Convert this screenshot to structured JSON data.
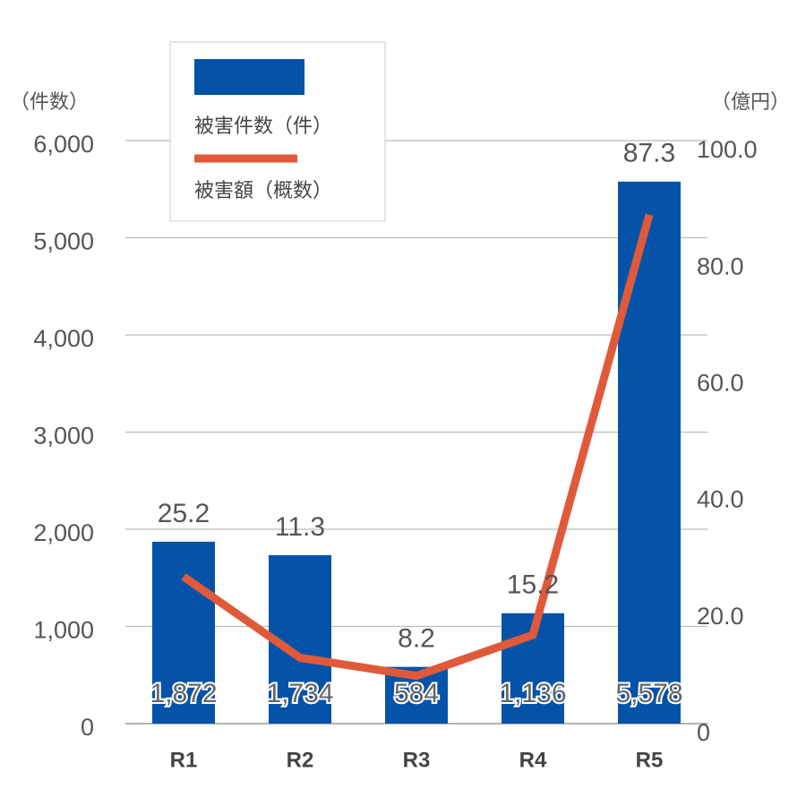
{
  "chart_data": {
    "type": "bar_line",
    "categories": [
      "R1",
      "R2",
      "R3",
      "R4",
      "R5"
    ],
    "series": [
      {
        "name": "被害件数（件）",
        "type": "bar",
        "color": "#0553a8",
        "values": [
          1872,
          1734,
          584,
          1136,
          5578
        ],
        "value_labels": [
          "1,872",
          "1,734",
          "584",
          "1,136",
          "5,578"
        ]
      },
      {
        "name": "被害額（概数）",
        "type": "line",
        "color": "#e05a3a",
        "axis": "y2",
        "values": [
          25.2,
          11.3,
          8.2,
          15.2,
          87.3
        ]
      }
    ],
    "y_label": "（件数）",
    "y2_label": "（億円）",
    "ylim": [
      0,
      6000
    ],
    "yticks": [
      0,
      {
        "value": 1000,
        "label": "1,000"
      },
      {
        "value": 2000,
        "label": "2,000"
      },
      {
        "value": 3000,
        "label": "3,000"
      },
      {
        "value": 4000,
        "label": "4,000"
      },
      {
        "value": 5000,
        "label": "5,000"
      },
      {
        "value": 6000,
        "label": "6,000"
      }
    ],
    "y2lim": [
      0,
      100
    ],
    "y2ticks": [
      0,
      {
        "value": 20,
        "label": "20.0"
      },
      {
        "value": 40,
        "label": "40.0"
      },
      {
        "value": 60,
        "label": "60.0"
      },
      {
        "value": 80,
        "label": "80.0"
      },
      {
        "value": 100,
        "label": "100.0"
      }
    ],
    "grid": true,
    "legend": "upper left"
  }
}
